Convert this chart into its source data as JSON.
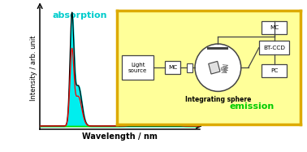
{
  "fig_width": 3.78,
  "fig_height": 1.87,
  "dpi": 100,
  "bg_color": "#ffffff",
  "ylabel": "Intensity / arb. unit",
  "xlabel": "Wavelength / nm",
  "absorption_label": "absorption",
  "emission_label": "emission",
  "abs_fill_color": "#00eeee",
  "abs_line_color": "#000000",
  "red_line_color": "#ff0000",
  "em_fill_color": "#00dd00",
  "inset_bg": "#ffff99",
  "inset_border": "#ddaa00",
  "box_fc": "#ffffff",
  "box_ec": "#444444",
  "line_ec": "#444444"
}
